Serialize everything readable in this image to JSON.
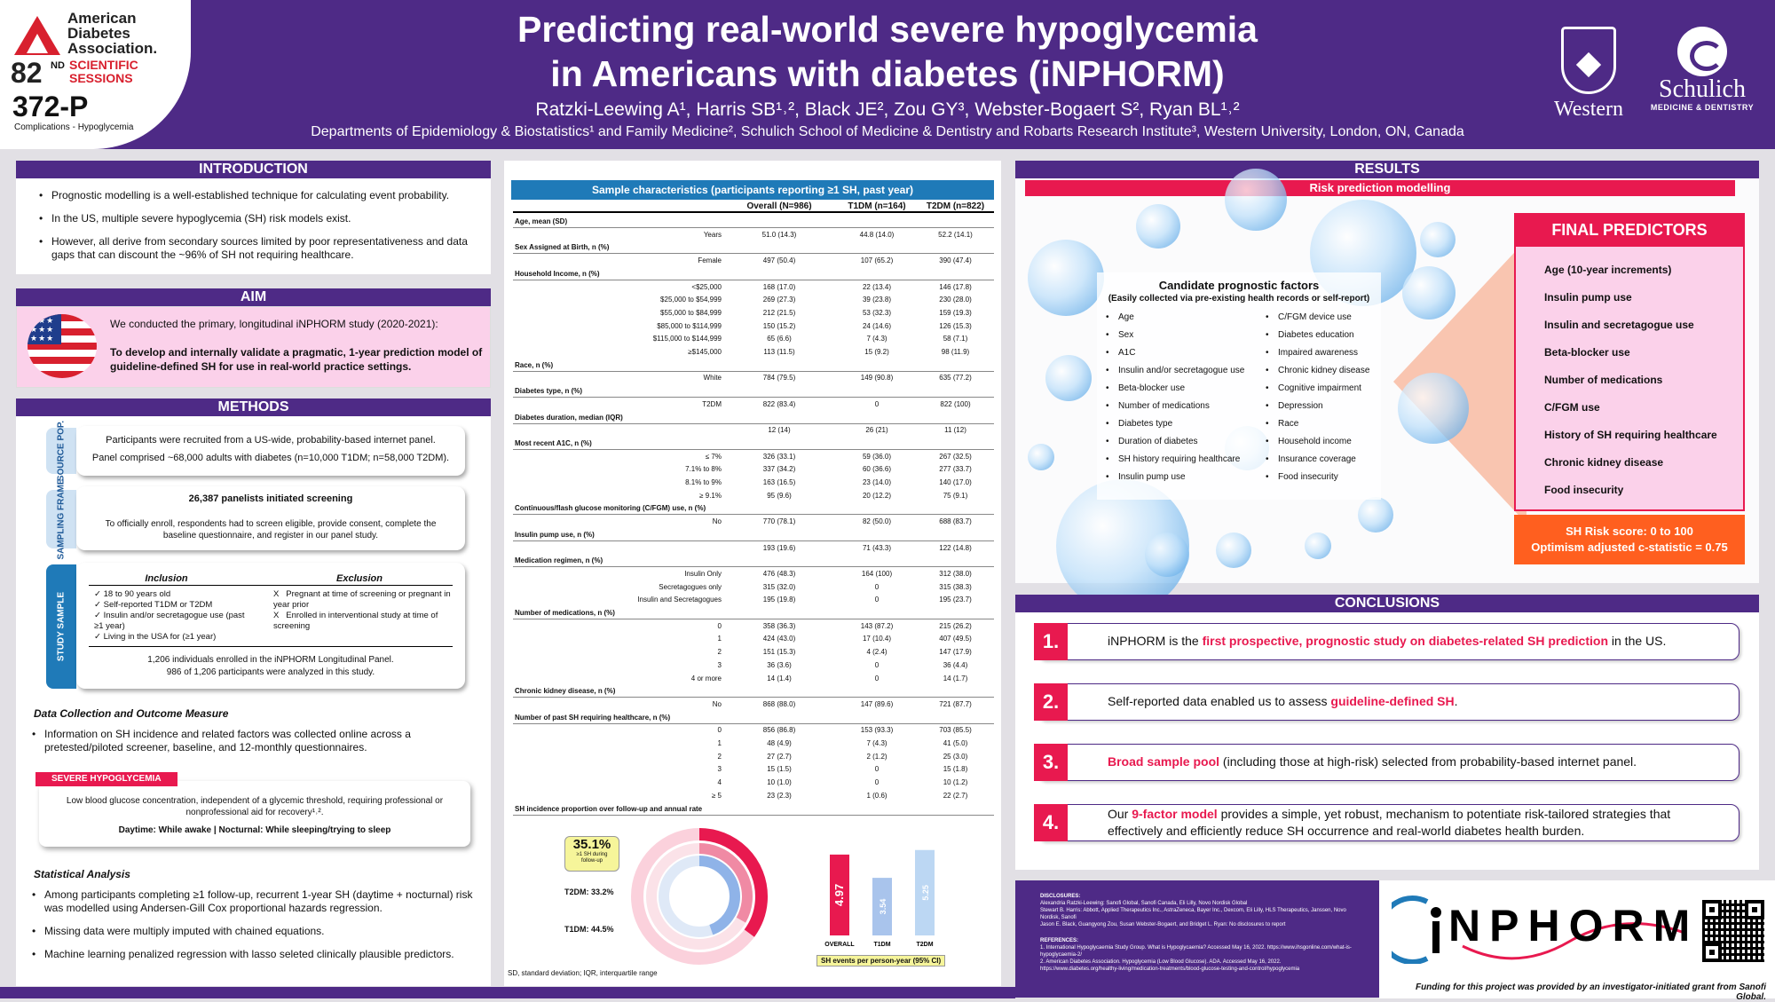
{
  "header": {
    "ada_name": "American Diabetes Association.",
    "ada_num": "82",
    "ada_sup": "ND",
    "ada_sessions": "SCIENTIFIC SESSIONS",
    "poster_code": "372-P",
    "category": "Complications - Hypoglycemia",
    "title_line1": "Predicting real-world severe hypoglycemia",
    "title_line2": "in Americans with diabetes (iNPHORM)",
    "authors": "Ratzki-Leewing A¹, Harris SB¹˒², Black JE², Zou GY³, Webster-Bogaert S², Ryan BL¹˒²",
    "affiliations": "Departments of Epidemiology & Biostatistics¹ and Family Medicine², Schulich School of Medicine & Dentistry and Robarts Research Institute³, Western University, London, ON, Canada",
    "western": "Western",
    "schulich": "Schulich",
    "schulich_sub": "MEDICINE & DENTISTRY"
  },
  "intro": {
    "title": "INTRODUCTION",
    "items": [
      "Prognostic modelling is a well-established technique for calculating event probability.",
      "In the US, multiple severe hypoglycemia (SH) risk models exist.",
      "However, all derive from secondary sources limited by poor representativeness and data gaps that can discount the ~96% of SH not requiring healthcare."
    ]
  },
  "aim": {
    "title": "AIM",
    "line1": "We conducted the primary, longitudinal iNPHORM study (2020-2021):",
    "line2": "To develop and internally validate a pragmatic, 1-year prediction model of guideline-defined SH for use in real-world practice settings."
  },
  "methods": {
    "title": "METHODS",
    "source_tab": "SOURCE POP.",
    "source_l1": "Participants were recruited from a US-wide, probability-based internet panel.",
    "source_l2": "Panel comprised ~68,000 adults with diabetes (n=10,000 T1DM; n=58,000 T2DM).",
    "frame_tab": "SAMPLING FRAME",
    "frame_l1": "26,387 panelists initiated screening",
    "frame_l2": "To officially enroll, respondents had to screen eligible, provide consent, complete the baseline questionnaire, and register in our panel study.",
    "study_tab": "STUDY SAMPLE",
    "inclusion_h": "Inclusion",
    "exclusion_h": "Exclusion",
    "inclusion": [
      "18 to 90 years old",
      "Self-reported T1DM or T2DM",
      "Insulin and/or secretagogue use (past ≥1 year)",
      "Living in the USA for (≥1 year)"
    ],
    "exclusion": [
      "Pregnant at time of screening or pregnant in year prior",
      "Enrolled in interventional study at time of screening"
    ],
    "enrolled": "1,206 individuals enrolled in the iNPHORM Longitudinal Panel.",
    "analyzed": "986 of 1,206 participants were analyzed in this study.",
    "dc_title": "Data Collection and Outcome Measure",
    "dc_text": "Information on SH incidence and related factors was collected online across a pretested/piloted screener, baseline, and 12-monthly questionnaires.",
    "sh_tag": "SEVERE HYPOGLYCEMIA",
    "sh_def": "Low blood glucose concentration, independent of a glycemic threshold, requiring professional or nonprofessional aid for recovery¹˒².",
    "sh_daytime": "Daytime: While awake  |   Nocturnal: While sleeping/trying to sleep",
    "stat_title": "Statistical Analysis",
    "stat_items": [
      "Among participants completing ≥1 follow-up, recurrent 1-year SH (daytime + nocturnal) risk was modelled using Andersen-Gill Cox proportional hazards regression.",
      "Missing data were multiply imputed with chained equations.",
      "Machine learning penalized regression with lasso seleted clinically plausible predictors."
    ]
  },
  "table": {
    "title": "Sample characteristics (participants reporting ≥1 SH, past year)",
    "cols": [
      "Overall (N=986)",
      "T1DM (n=164)",
      "T2DM (n=822)"
    ],
    "rows": [
      {
        "s": "Age, mean (SD)"
      },
      {
        "l": "Years",
        "v": [
          "51.0 (14.3)",
          "44.8 (14.0)",
          "52.2 (14.1)"
        ]
      },
      {
        "s": "Sex Assigned at Birth, n (%)"
      },
      {
        "l": "Female",
        "v": [
          "497 (50.4)",
          "107 (65.2)",
          "390 (47.4)"
        ]
      },
      {
        "s": "Household Income, n (%)"
      },
      {
        "l": "<$25,000",
        "v": [
          "168 (17.0)",
          "22 (13.4)",
          "146 (17.8)"
        ]
      },
      {
        "l": "$25,000 to $54,999",
        "v": [
          "269 (27.3)",
          "39 (23.8)",
          "230 (28.0)"
        ]
      },
      {
        "l": "$55,000 to $84,999",
        "v": [
          "212 (21.5)",
          "53 (32.3)",
          "159 (19.3)"
        ]
      },
      {
        "l": "$85,000 to $114,999",
        "v": [
          "150 (15.2)",
          "24 (14.6)",
          "126 (15.3)"
        ]
      },
      {
        "l": "$115,000 to $144,999",
        "v": [
          "65 (6.6)",
          "7 (4.3)",
          "58 (7.1)"
        ]
      },
      {
        "l": "≥$145,000",
        "v": [
          "113 (11.5)",
          "15 (9.2)",
          "98 (11.9)"
        ]
      },
      {
        "s": "Race, n (%)"
      },
      {
        "l": "White",
        "v": [
          "784 (79.5)",
          "149 (90.8)",
          "635 (77.2)"
        ]
      },
      {
        "s": "Diabetes type, n (%)"
      },
      {
        "l": "T2DM",
        "v": [
          "822 (83.4)",
          "0",
          "822 (100)"
        ]
      },
      {
        "s": "Diabetes duration, median (IQR)"
      },
      {
        "l": "",
        "v": [
          "12 (14)",
          "26 (21)",
          "11 (12)"
        ]
      },
      {
        "s": "Most recent A1C, n (%)"
      },
      {
        "l": "≤ 7%",
        "v": [
          "326 (33.1)",
          "59 (36.0)",
          "267 (32.5)"
        ]
      },
      {
        "l": "7.1% to 8%",
        "v": [
          "337 (34.2)",
          "60 (36.6)",
          "277 (33.7)"
        ]
      },
      {
        "l": "8.1% to 9%",
        "v": [
          "163 (16.5)",
          "23 (14.0)",
          "140 (17.0)"
        ]
      },
      {
        "l": "≥ 9.1%",
        "v": [
          "95 (9.6)",
          "20 (12.2)",
          "75 (9.1)"
        ]
      },
      {
        "s": "Continuous/flash glucose monitoring (C/FGM) use, n (%)"
      },
      {
        "l": "No",
        "v": [
          "770 (78.1)",
          "82 (50.0)",
          "688 (83.7)"
        ]
      },
      {
        "s": "Insulin pump use, n (%)"
      },
      {
        "l": "",
        "v": [
          "193 (19.6)",
          "71 (43.3)",
          "122 (14.8)"
        ]
      },
      {
        "s": "Medication regimen, n (%)"
      },
      {
        "l": "Insulin Only",
        "v": [
          "476 (48.3)",
          "164 (100)",
          "312 (38.0)"
        ]
      },
      {
        "l": "Secretagogues only",
        "v": [
          "315 (32.0)",
          "0",
          "315 (38.3)"
        ]
      },
      {
        "l": "Insulin and Secretagogues",
        "v": [
          "195 (19.8)",
          "0",
          "195 (23.7)"
        ]
      },
      {
        "s": "Number of medications, n (%)"
      },
      {
        "l": "0",
        "v": [
          "358 (36.3)",
          "143 (87.2)",
          "215 (26.2)"
        ]
      },
      {
        "l": "1",
        "v": [
          "424 (43.0)",
          "17 (10.4)",
          "407 (49.5)"
        ]
      },
      {
        "l": "2",
        "v": [
          "151 (15.3)",
          "4 (2.4)",
          "147 (17.9)"
        ]
      },
      {
        "l": "3",
        "v": [
          "36 (3.6)",
          "0",
          "36 (4.4)"
        ]
      },
      {
        "l": "4 or more",
        "v": [
          "14 (1.4)",
          "0",
          "14 (1.7)"
        ]
      },
      {
        "s": "Chronic kidney disease, n (%)"
      },
      {
        "l": "No",
        "v": [
          "868 (88.0)",
          "147 (89.6)",
          "721 (87.7)"
        ]
      },
      {
        "s": "Number of past SH requiring healthcare, n (%)"
      },
      {
        "l": "0",
        "v": [
          "856 (86.8)",
          "153 (93.3)",
          "703 (85.5)"
        ]
      },
      {
        "l": "1",
        "v": [
          "48 (4.9)",
          "7 (4.3)",
          "41 (5.0)"
        ]
      },
      {
        "l": "2",
        "v": [
          "27 (2.7)",
          "2 (1.2)",
          "25 (3.0)"
        ]
      },
      {
        "l": "3",
        "v": [
          "15 (1.5)",
          "0",
          "15 (1.8)"
        ]
      },
      {
        "l": "4",
        "v": [
          "10 (1.0)",
          "0",
          "10 (1.2)"
        ]
      },
      {
        "l": "≥ 5",
        "v": [
          "23 (2.3)",
          "1 (0.6)",
          "22 (2.7)"
        ]
      },
      {
        "s": "SH incidence proportion over follow-up and annual rate"
      }
    ],
    "footnote": "SD, standard deviation; IQR, interquartile range"
  },
  "chart_data": {
    "type": "bar",
    "title": "",
    "xlabel": "SH events per person-year (95% CI)",
    "categories": [
      "OVERALL",
      "T1DM",
      "T2DM"
    ],
    "values": [
      4.97,
      3.54,
      5.25
    ],
    "colors": [
      "#e8194f",
      "#a9c4ec",
      "#bcd7f3"
    ],
    "ylim": [
      0,
      6
    ],
    "donut": {
      "overall_pct": "35.1%",
      "overall_label": "≥1 SH during follow-up",
      "t2dm": "T2DM: 33.2%",
      "t1dm": "T1DM: 44.5%",
      "values": [
        35.1,
        33.2,
        44.5
      ]
    }
  },
  "results": {
    "title": "RESULTS",
    "risk": "Risk prediction modelling",
    "cand_title": "Candidate prognostic factors",
    "cand_sub": "(Easily collected via pre-existing health records or self-report)",
    "cand_left": [
      "Age",
      "Sex",
      "A1C",
      "Insulin and/or secretagogue use",
      "Beta-blocker use",
      "Number of medications",
      "Diabetes type",
      "Duration of diabetes",
      "SH history requiring healthcare",
      "Insulin pump use"
    ],
    "cand_right": [
      "C/FGM device use",
      "Diabetes education",
      "Impaired awareness",
      "Chronic kidney disease",
      "Cognitive impairment",
      "Depression",
      "Race",
      "Household income",
      "Insurance coverage",
      "Food insecurity"
    ],
    "fp_title": "FINAL PREDICTORS",
    "final": [
      "Age (10-year increments)",
      "Insulin pump use",
      "Insulin and secretagogue use",
      "Beta-blocker use",
      "Number of medications",
      "C/FGM use",
      "History of SH requiring healthcare",
      "Chronic kidney disease",
      "Food insecurity"
    ],
    "score1": "SH Risk score: 0 to 100",
    "score2": "Optimism adjusted c-statistic = 0.75"
  },
  "conclusions": {
    "title": "CONCLUSIONS",
    "items": [
      {
        "n": "1.",
        "a": "iNPHORM is the ",
        "b": "first prospective, prognostic study on diabetes-related SH prediction",
        "c": " in the US."
      },
      {
        "n": "2.",
        "a": "Self-reported data enabled us to assess ",
        "b": "guideline-defined SH",
        "c": "."
      },
      {
        "n": "3.",
        "a": "",
        "b": "Broad sample pool",
        "c": " (including those at high-risk) selected from probability-based internet panel."
      },
      {
        "n": "4.",
        "a": "Our ",
        "b": "9-factor model",
        "c": " provides a simple, yet robust, mechanism to potentiate risk-tailored strategies that effectively and efficiently reduce SH occurrence and real-world diabetes health burden."
      }
    ]
  },
  "footer": {
    "disc_title": "DISCLOSURES:",
    "disc1": "Alexandria Ratzki-Leewing: Sanofi Global, Sanofi Canada, Eli Lilly, Novo Nordisk Global",
    "disc2": "Stewart B. Harris: Abbott, Applied Therapeutics Inc., AstraZeneca, Bayer Inc., Dexcom, Eli Lilly, HLS Therapeutics, Janssen, Novo Nordisk, Sanofi",
    "disc3": "Jason E. Black, Guangyong Zou, Susan Webster-Bogaert, and Bridget L. Ryan: No disclosures to report",
    "ref_title": "REFERENCES:",
    "ref1": "1. International Hypoglycaemia Study Group. What is Hypoglycaemia? Accessed May 16, 2022. https://www.ihsgonline.com/what-is-hypoglycaemia-2/",
    "ref2": "2. American Diabetes Association. Hypoglycemia (Low Blood Glucose). ADA. Accessed May 16, 2022. https://www.diabetes.org/healthy-living/medication-treatments/blood-glucose-testing-and-control/hypoglycemia",
    "logo": "NPHORM",
    "funding": "Funding for this project was provided by an investigator-initiated grant from Sanofi Global."
  }
}
